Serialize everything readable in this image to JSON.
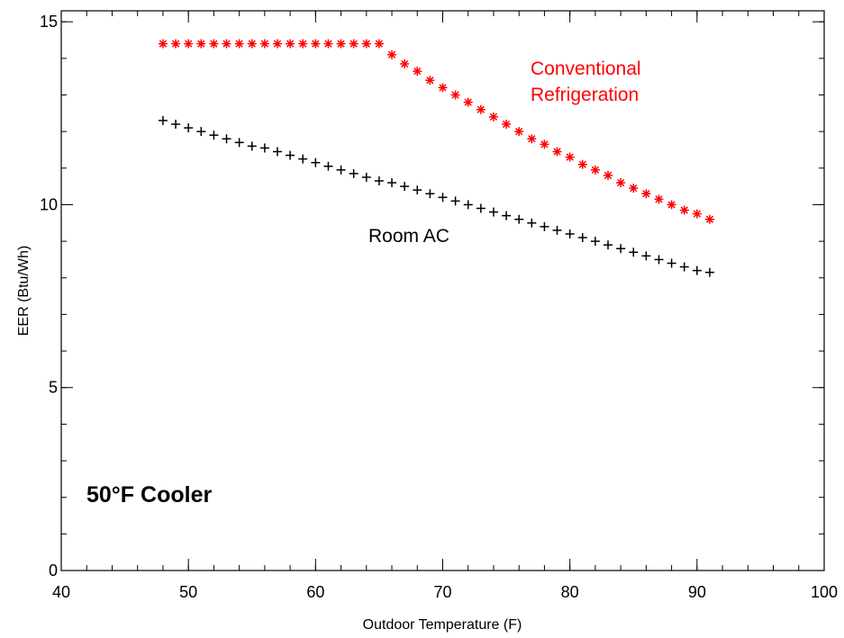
{
  "chart_data": {
    "type": "scatter",
    "xlabel": "Outdoor Temperature (F)",
    "ylabel": "EER (Btu/Wh)",
    "xlim": [
      40,
      100
    ],
    "ylim": [
      0,
      15.3
    ],
    "x_ticks": [
      40,
      50,
      60,
      70,
      80,
      90,
      100
    ],
    "y_ticks": [
      0,
      5,
      10,
      15
    ],
    "x_minor_step": 2,
    "y_minor_step": 1,
    "grid": false,
    "annotation": "50°F Cooler",
    "series": [
      {
        "name": "Conventional\nRefrigeration",
        "label_lines": [
          "Conventional",
          "Refrigeration"
        ],
        "marker": "asterisk",
        "color": "#ff0000",
        "x": [
          48,
          49,
          50,
          51,
          52,
          53,
          54,
          55,
          56,
          57,
          58,
          59,
          60,
          61,
          62,
          63,
          64,
          65,
          66,
          67,
          68,
          69,
          70,
          71,
          72,
          73,
          74,
          75,
          76,
          77,
          78,
          79,
          80,
          81,
          82,
          83,
          84,
          85,
          86,
          87,
          88,
          89,
          90,
          91
        ],
        "y": [
          14.4,
          14.4,
          14.4,
          14.4,
          14.4,
          14.4,
          14.4,
          14.4,
          14.4,
          14.4,
          14.4,
          14.4,
          14.4,
          14.4,
          14.4,
          14.4,
          14.4,
          14.4,
          14.1,
          13.85,
          13.65,
          13.4,
          13.2,
          13.0,
          12.8,
          12.6,
          12.4,
          12.2,
          12.0,
          11.8,
          11.65,
          11.45,
          11.3,
          11.1,
          10.95,
          10.8,
          10.6,
          10.45,
          10.3,
          10.15,
          10.0,
          9.85,
          9.75,
          9.6
        ]
      },
      {
        "name": "Room AC",
        "label_lines": [
          "Room AC"
        ],
        "marker": "plus",
        "color": "#000000",
        "x": [
          48,
          49,
          50,
          51,
          52,
          53,
          54,
          55,
          56,
          57,
          58,
          59,
          60,
          61,
          62,
          63,
          64,
          65,
          66,
          67,
          68,
          69,
          70,
          71,
          72,
          73,
          74,
          75,
          76,
          77,
          78,
          79,
          80,
          81,
          82,
          83,
          84,
          85,
          86,
          87,
          88,
          89,
          90,
          91
        ],
        "y": [
          12.3,
          12.2,
          12.1,
          12.0,
          11.9,
          11.8,
          11.7,
          11.6,
          11.55,
          11.45,
          11.35,
          11.25,
          11.15,
          11.05,
          10.95,
          10.85,
          10.75,
          10.65,
          10.6,
          10.5,
          10.4,
          10.3,
          10.2,
          10.1,
          10.0,
          9.9,
          9.8,
          9.7,
          9.6,
          9.5,
          9.4,
          9.3,
          9.2,
          9.1,
          9.0,
          8.9,
          8.8,
          8.7,
          8.6,
          8.5,
          8.4,
          8.3,
          8.2,
          8.15
        ]
      }
    ]
  }
}
